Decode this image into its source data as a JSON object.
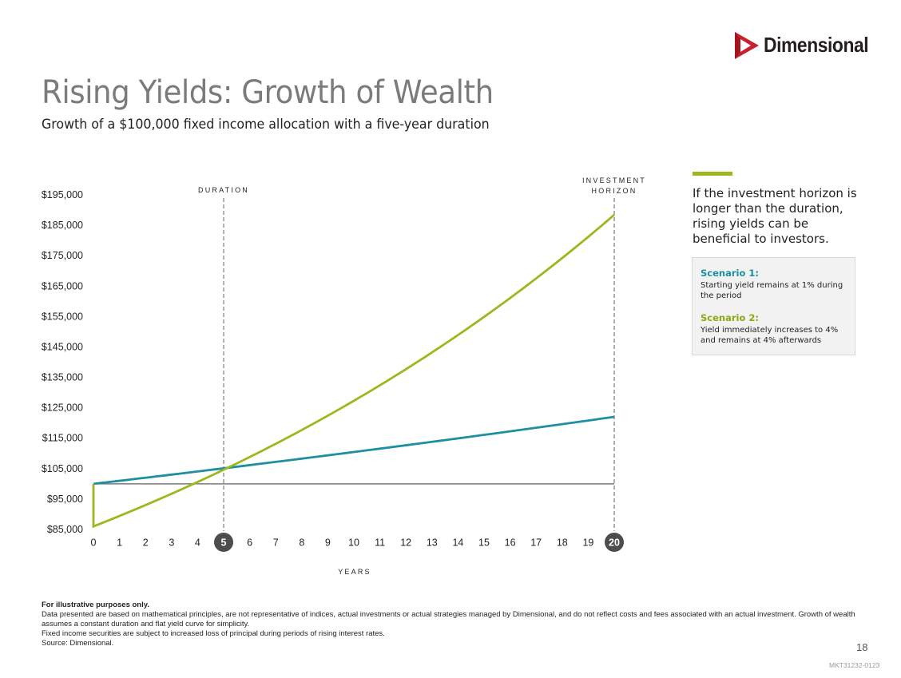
{
  "logo": {
    "text": "Dimensional",
    "color": "#c8202f"
  },
  "title": "Rising Yields: Growth of Wealth",
  "subtitle": "Growth of a $100,000 fixed income allocation with a five-year duration",
  "callout": {
    "text": "If the investment horizon is longer than the duration, rising yields can be beneficial to investors.",
    "accent_color": "#9bb91e"
  },
  "legend": {
    "scenario1": {
      "title": "Scenario 1:",
      "desc": "Starting yield remains at 1% during the period",
      "color": "#1e8fa0"
    },
    "scenario2": {
      "title": "Scenario 2:",
      "desc": "Yield immediately increases to 4% and remains at 4% afterwards",
      "color": "#9bb91e"
    }
  },
  "chart_data": {
    "type": "line",
    "xlabel": "YEARS",
    "ylabel": "",
    "x_ticks": [
      "0",
      "1",
      "2",
      "3",
      "4",
      "5",
      "6",
      "7",
      "8",
      "9",
      "10",
      "11",
      "12",
      "13",
      "14",
      "15",
      "16",
      "17",
      "18",
      "19",
      "20"
    ],
    "y_ticks": [
      "$85,000",
      "$95,000",
      "$105,000",
      "$115,000",
      "$125,000",
      "$135,000",
      "$145,000",
      "$155,000",
      "$165,000",
      "$175,000",
      "$185,000",
      "$195,000"
    ],
    "xlim": [
      0,
      20
    ],
    "ylim": [
      85000,
      195000
    ],
    "highlighted_years": [
      5,
      20
    ],
    "reference_lines": [
      {
        "x": 5,
        "label": "DURATION"
      },
      {
        "x": 20,
        "label": "INVESTMENT HORIZON"
      }
    ],
    "baseline": {
      "y": 100000,
      "x_range": [
        0,
        20
      ]
    },
    "series": [
      {
        "color": "#1e8fa0",
        "x": [
          0,
          20
        ],
        "start_value": 100000,
        "annual_rate": 0.01
      },
      {
        "color": "#9bb91e",
        "x": [
          0,
          20
        ],
        "initial_value": 100000,
        "value_after_shock": 86000,
        "annual_rate": 0.04
      }
    ]
  },
  "footnotes": {
    "heading": "For illustrative purposes only.",
    "lines": [
      "Data presented are based on mathematical principles, are not representative of indices, actual investments or actual strategies managed by Dimensional, and do not reflect costs and fees associated with an actual investment. Growth of wealth assumes a constant duration and flat yield curve for simplicity.",
      "Fixed income securities are subject to increased loss of principal during periods of rising interest rates.",
      "Source: Dimensional."
    ]
  },
  "page_number": "18",
  "doc_code": "MKT31232-0123"
}
